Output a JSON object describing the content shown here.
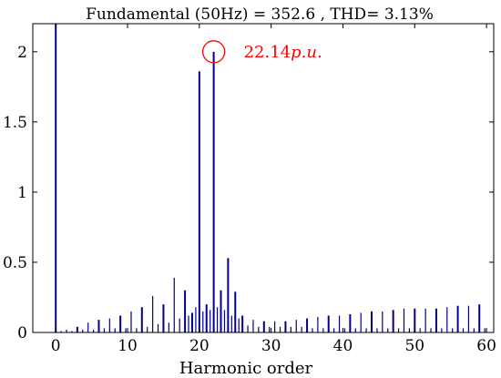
{
  "chart_data": {
    "type": "bar",
    "title": "Fundamental (50Hz) = 352.6 , THD= 3.13%",
    "xlabel": "Harmonic order",
    "ylabel": "",
    "xlim": [
      -3.2,
      61
    ],
    "ylim": [
      0,
      2.2
    ],
    "x_ticks": [
      0,
      10,
      20,
      30,
      40,
      50,
      60
    ],
    "x_tick_labels": [
      "0",
      "10",
      "20",
      "30",
      "40",
      "50",
      "60"
    ],
    "y_ticks": [
      0,
      0.5,
      1,
      1.5,
      2
    ],
    "y_tick_labels": [
      "0",
      "0.5",
      "1",
      "1.5",
      "2"
    ],
    "grid": false,
    "bar_color": "#00008b",
    "annotation": {
      "text": "22.14",
      "text_italic": "p.u.",
      "x": 22,
      "y": 2.0,
      "color": "#ff0000"
    },
    "x": [
      0,
      0.75,
      1.5,
      2.25,
      3,
      3.75,
      4.5,
      5.25,
      6,
      6.75,
      7.5,
      8.25,
      9,
      9.75,
      10.5,
      11.25,
      12,
      12.75,
      13.5,
      14.25,
      15,
      15.75,
      16.5,
      17.25,
      18,
      18.5,
      19,
      19.5,
      20,
      20.5,
      21,
      21.5,
      22,
      22.5,
      23,
      23.5,
      24,
      24.5,
      25,
      25.5,
      26,
      26.75,
      27.5,
      28.25,
      29,
      29.75,
      30.5,
      31.25,
      32,
      32.75,
      33.5,
      34.25,
      35,
      35.75,
      36.5,
      37.25,
      38,
      38.75,
      39.5,
      40.25,
      41,
      41.75,
      42.5,
      43.25,
      44,
      44.75,
      45.5,
      46.25,
      47,
      47.75,
      48.5,
      49.25,
      50,
      50.75,
      51.5,
      52.25,
      53,
      53.75,
      54.5,
      55.25,
      56,
      56.75,
      57.5,
      58.25,
      59,
      59.75
    ],
    "values": [
      2.2,
      0.01,
      0.02,
      0.01,
      0.04,
      0.02,
      0.07,
      0.02,
      0.09,
      0.03,
      0.1,
      0.03,
      0.12,
      0.03,
      0.15,
      0.03,
      0.18,
      0.04,
      0.26,
      0.06,
      0.2,
      0.07,
      0.39,
      0.1,
      0.3,
      0.12,
      0.14,
      0.18,
      1.86,
      0.15,
      0.2,
      0.16,
      2.0,
      0.18,
      0.3,
      0.16,
      0.53,
      0.12,
      0.29,
      0.1,
      0.12,
      0.05,
      0.09,
      0.04,
      0.08,
      0.04,
      0.08,
      0.04,
      0.08,
      0.04,
      0.09,
      0.04,
      0.1,
      0.03,
      0.11,
      0.03,
      0.12,
      0.03,
      0.12,
      0.03,
      0.13,
      0.03,
      0.14,
      0.03,
      0.15,
      0.03,
      0.15,
      0.03,
      0.16,
      0.03,
      0.17,
      0.03,
      0.17,
      0.03,
      0.17,
      0.03,
      0.17,
      0.03,
      0.18,
      0.03,
      0.19,
      0.03,
      0.19,
      0.03,
      0.2,
      0.03
    ]
  }
}
